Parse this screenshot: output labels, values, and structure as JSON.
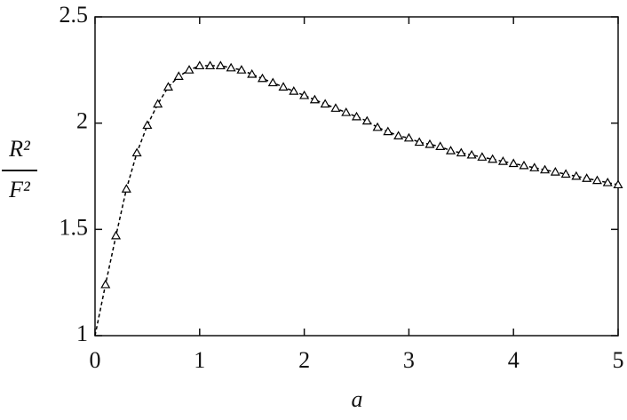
{
  "chart_data": {
    "type": "line",
    "xlabel": "a",
    "ylabel_numerator": "R²",
    "ylabel_denominator": "F²",
    "xlim": [
      0,
      5
    ],
    "ylim": [
      1,
      2.5
    ],
    "xticks": [
      0,
      1,
      2,
      3,
      4,
      5
    ],
    "yticks": [
      1,
      1.5,
      2,
      2.5
    ],
    "color": "#000000",
    "series": [
      {
        "style": "dashed",
        "x": [
          0,
          0.1,
          0.2,
          0.3,
          0.4,
          0.5,
          0.6,
          0.7,
          0.8,
          0.9,
          1.0,
          1.1,
          1.2,
          1.3,
          1.4,
          1.5,
          1.6,
          1.7,
          1.8,
          1.9,
          2.0,
          2.1,
          2.2,
          2.3,
          2.4,
          2.5,
          2.6,
          2.7,
          2.8,
          2.9,
          3.0,
          3.1,
          3.2,
          3.3,
          3.4,
          3.5,
          3.6,
          3.7,
          3.8,
          3.9,
          4.0,
          4.1,
          4.2,
          4.3,
          4.4,
          4.5,
          4.6,
          4.7,
          4.8,
          4.9,
          5.0
        ],
        "values": [
          1,
          1.24,
          1.47,
          1.69,
          1.86,
          1.99,
          2.09,
          2.17,
          2.22,
          2.25,
          2.27,
          2.27,
          2.27,
          2.26,
          2.25,
          2.23,
          2.21,
          2.19,
          2.17,
          2.15,
          2.13,
          2.11,
          2.09,
          2.07,
          2.05,
          2.03,
          2.01,
          1.98,
          1.96,
          1.94,
          1.93,
          1.91,
          1.9,
          1.89,
          1.87,
          1.86,
          1.85,
          1.84,
          1.83,
          1.82,
          1.81,
          1.8,
          1.79,
          1.78,
          1.77,
          1.76,
          1.75,
          1.74,
          1.73,
          1.72,
          1.71
        ]
      },
      {
        "marker": "triangle",
        "x": [
          0.1,
          0.2,
          0.3,
          0.4,
          0.5,
          0.6,
          0.7,
          0.8,
          0.9,
          1.0,
          1.1,
          1.2,
          1.3,
          1.4,
          1.5,
          1.6,
          1.7,
          1.8,
          1.9,
          2.0,
          2.1,
          2.2,
          2.3,
          2.4,
          2.5,
          2.6,
          2.7,
          2.8,
          2.9,
          3.0,
          3.1,
          3.2,
          3.3,
          3.4,
          3.5,
          3.6,
          3.7,
          3.8,
          3.9,
          4.0,
          4.1,
          4.2,
          4.3,
          4.4,
          4.5,
          4.6,
          4.7,
          4.8,
          4.9,
          5.0
        ],
        "values": [
          1.24,
          1.47,
          1.69,
          1.86,
          1.99,
          2.09,
          2.17,
          2.22,
          2.25,
          2.27,
          2.27,
          2.27,
          2.26,
          2.25,
          2.23,
          2.21,
          2.19,
          2.17,
          2.15,
          2.13,
          2.11,
          2.09,
          2.07,
          2.05,
          2.03,
          2.01,
          1.98,
          1.96,
          1.94,
          1.93,
          1.91,
          1.9,
          1.89,
          1.87,
          1.86,
          1.85,
          1.84,
          1.83,
          1.82,
          1.81,
          1.8,
          1.79,
          1.78,
          1.77,
          1.76,
          1.75,
          1.74,
          1.73,
          1.72,
          1.71
        ]
      }
    ]
  }
}
